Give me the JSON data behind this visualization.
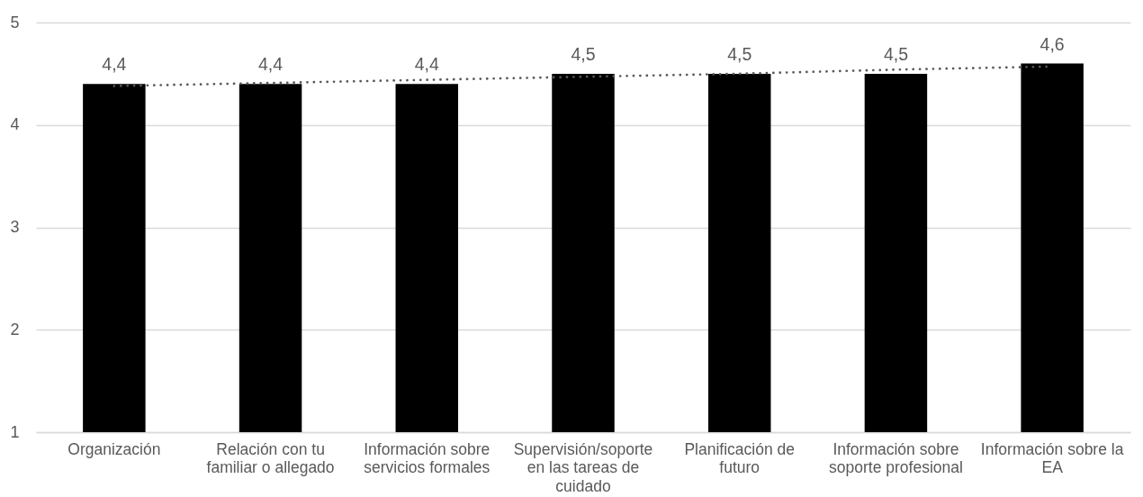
{
  "chart_data": {
    "type": "bar",
    "categories": [
      "Organización",
      "Relación con tu familiar o allegado",
      "Información sobre servicios formales",
      "Supervisión/soporte en las tareas de cuidado",
      "Planificación de futuro",
      "Información sobre soporte profesional",
      "Información sobre la EA"
    ],
    "series": [
      {
        "color": "#000000",
        "values": [
          4.4,
          4.4,
          4.4,
          4.5,
          4.5,
          4.5,
          4.6
        ],
        "value_labels": [
          "4,4",
          "4,4",
          "4,4",
          "4,5",
          "4,5",
          "4,5",
          "4,6"
        ]
      },
      {
        "type": "line",
        "color": "#595959",
        "line_style": "dotted",
        "values": [
          4.38,
          4.41,
          4.44,
          4.47,
          4.5,
          4.54,
          4.57
        ]
      }
    ],
    "ylim": [
      1,
      5
    ],
    "yticks": [
      1,
      2,
      3,
      4,
      5
    ],
    "grid": "y"
  }
}
